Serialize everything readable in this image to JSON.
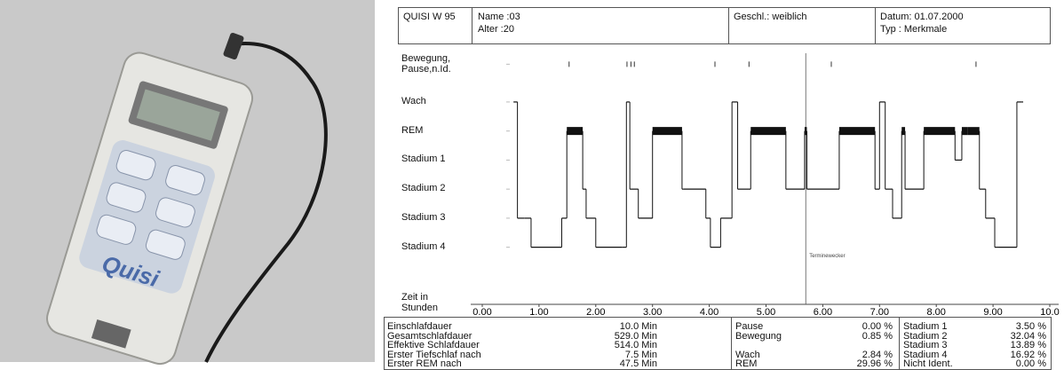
{
  "photo": {
    "brand": "Quisi"
  },
  "header": {
    "device": "QUISI W 95",
    "name": "Name :03",
    "age": "Alter   :20",
    "sex": "Geschl.: weiblich",
    "date": "Datum: 01.07.2000",
    "type": "Typ    : Merkmale"
  },
  "chart_data": {
    "type": "step",
    "xlabel": "Zeit in Stunden",
    "xlim": [
      0,
      10
    ],
    "xticks": [
      {
        "value": 0,
        "label": "0.00"
      },
      {
        "value": 1,
        "label": "1.00"
      },
      {
        "value": 2,
        "label": "2.00"
      },
      {
        "value": 3,
        "label": "3.00"
      },
      {
        "value": 4,
        "label": "4.00"
      },
      {
        "value": 5,
        "label": "5.00"
      },
      {
        "value": 6,
        "label": "6.00"
      },
      {
        "value": 7,
        "label": "7.00"
      },
      {
        "value": 8,
        "label": "8.00"
      },
      {
        "value": 9,
        "label": "9.00"
      },
      {
        "value": 10,
        "label": "10.0"
      }
    ],
    "ylim": [
      -0.5,
      6.8
    ],
    "yticks": [
      {
        "value": 6.3,
        "label": "Bewegung, Pause,n.Id."
      },
      {
        "value": 5,
        "label": "Wach"
      },
      {
        "value": 4,
        "label": "REM"
      },
      {
        "value": 3,
        "label": "Stadium 1"
      },
      {
        "value": 2,
        "label": "Stadium 2"
      },
      {
        "value": 1,
        "label": "Stadium 3"
      },
      {
        "value": 0,
        "label": "Stadium 4"
      }
    ],
    "color": "#111111",
    "events": [
      1.53,
      2.55,
      2.62,
      2.68,
      4.1,
      4.7,
      6.15,
      8.7
    ],
    "annotation": {
      "text": "Terminewecker",
      "x": 5.7
    },
    "x": [
      0.55,
      0.62,
      0.74,
      0.86,
      1.4,
      1.49,
      1.77,
      1.83,
      2.0,
      2.46,
      2.54,
      2.6,
      2.75,
      3.0,
      3.52,
      3.55,
      3.94,
      4.02,
      4.2,
      4.4,
      4.5,
      4.73,
      5.35,
      5.68,
      5.72,
      6.29,
      6.92,
      7.0,
      7.1,
      7.23,
      7.39,
      7.45,
      7.78,
      8.33,
      8.45,
      8.55,
      8.76,
      8.87,
      9.03,
      9.1,
      9.42,
      9.5
    ],
    "values": [
      5,
      1,
      1,
      0,
      1,
      4,
      2,
      1,
      0,
      0,
      5,
      2,
      1,
      4,
      2,
      2,
      1,
      0,
      1,
      5,
      2,
      4,
      2,
      4,
      2,
      4,
      2,
      5,
      2,
      1,
      4,
      2,
      4,
      3,
      4,
      4,
      2,
      1,
      0,
      0,
      5,
      5
    ]
  },
  "stats": {
    "left": [
      [
        "Einschlafdauer",
        "10.0 Min"
      ],
      [
        "Gesamtschlafdauer",
        "529.0 Min"
      ],
      [
        "Effektive Schlafdauer",
        "514.0 Min"
      ],
      [
        "Erster Tiefschlaf nach",
        "7.5 Min"
      ],
      [
        "Erster REM nach",
        "47.5 Min"
      ]
    ],
    "middle": [
      [
        "Pause",
        "0.00 %"
      ],
      [
        "Bewegung",
        "0.85 %"
      ],
      null,
      [
        "Wach",
        "2.84 %"
      ],
      [
        "REM",
        "29.96 %"
      ]
    ],
    "right": [
      [
        "Stadium 1",
        "3.50 %"
      ],
      [
        "Stadium 2",
        "32.04 %"
      ],
      [
        "Stadium 3",
        "13.89 %"
      ],
      [
        "Stadium 4",
        "16.92 %"
      ],
      [
        "Nicht Ident.",
        "0.00 %"
      ]
    ]
  }
}
